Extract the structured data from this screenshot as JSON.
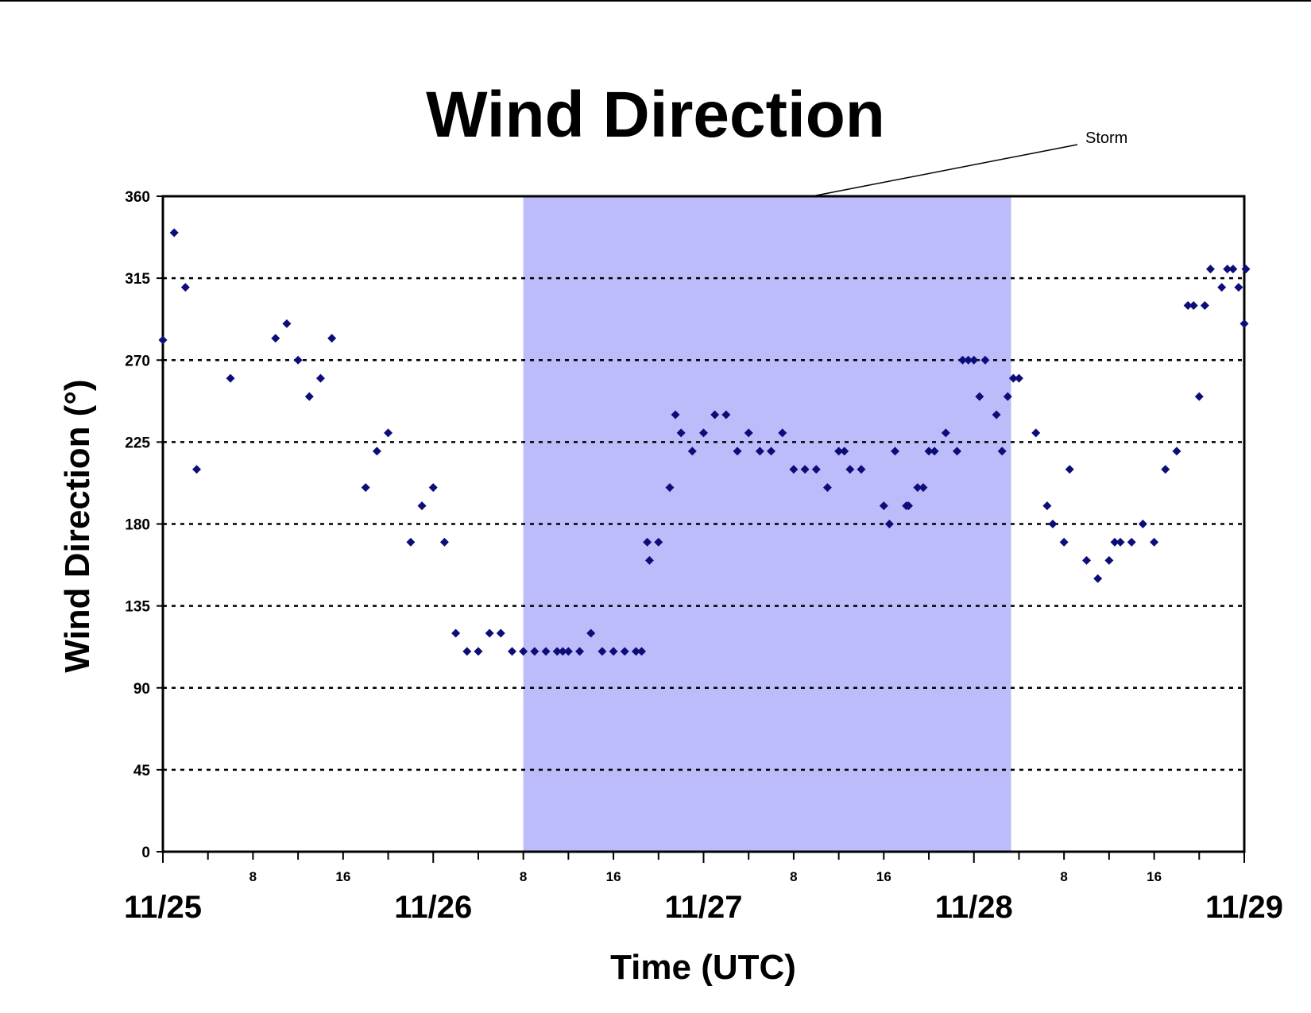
{
  "chart_data": {
    "type": "scatter",
    "title": "Wind Direction",
    "xlabel": "Time (UTC)",
    "ylabel": "Wind Direction (°)",
    "x_unit": "hours since 11/25 00 UTC",
    "xlim": [
      0,
      96
    ],
    "ylim": [
      0,
      360
    ],
    "y_ticks": [
      0,
      45,
      90,
      135,
      180,
      225,
      270,
      315,
      360
    ],
    "y_grid": true,
    "x_major_ticks": [
      {
        "x": 0,
        "label": "11/25"
      },
      {
        "x": 24,
        "label": "11/26"
      },
      {
        "x": 48,
        "label": "11/27"
      },
      {
        "x": 72,
        "label": "11/28"
      },
      {
        "x": 96,
        "label": "11/29"
      }
    ],
    "x_minor_ticks": [
      {
        "x": 8,
        "label": "8"
      },
      {
        "x": 16,
        "label": "16"
      },
      {
        "x": 32,
        "label": "8"
      },
      {
        "x": 40,
        "label": "16"
      },
      {
        "x": 56,
        "label": "8"
      },
      {
        "x": 64,
        "label": "16"
      },
      {
        "x": 80,
        "label": "8"
      },
      {
        "x": 88,
        "label": "16"
      }
    ],
    "shaded_region": {
      "x_start": 32,
      "x_end": 75.3,
      "label": "Storm",
      "color": "#bcbcfa"
    },
    "marker_color": "#0d0d7a",
    "series": [
      {
        "name": "",
        "points": [
          [
            0,
            281
          ],
          [
            1,
            340
          ],
          [
            2,
            310
          ],
          [
            3,
            210
          ],
          [
            6,
            260
          ],
          [
            10,
            282
          ],
          [
            11,
            290
          ],
          [
            12,
            270
          ],
          [
            13,
            250
          ],
          [
            14,
            260
          ],
          [
            15,
            282
          ],
          [
            18,
            200
          ],
          [
            19,
            220
          ],
          [
            20,
            230
          ],
          [
            22,
            170
          ],
          [
            23,
            190
          ],
          [
            24,
            200
          ],
          [
            25,
            170
          ],
          [
            26,
            120
          ],
          [
            27,
            110
          ],
          [
            28,
            110
          ],
          [
            29,
            120
          ],
          [
            30,
            120
          ],
          [
            31,
            110
          ],
          [
            32,
            110
          ],
          [
            33,
            110
          ],
          [
            34,
            110
          ],
          [
            35,
            110
          ],
          [
            35.5,
            110
          ],
          [
            36,
            110
          ],
          [
            37,
            110
          ],
          [
            38,
            120
          ],
          [
            39,
            110
          ],
          [
            40,
            110
          ],
          [
            41,
            110
          ],
          [
            42,
            110
          ],
          [
            42.5,
            110
          ],
          [
            43,
            170
          ],
          [
            43.2,
            160
          ],
          [
            44,
            170
          ],
          [
            45,
            200
          ],
          [
            45.5,
            240
          ],
          [
            46,
            230
          ],
          [
            47,
            220
          ],
          [
            48,
            230
          ],
          [
            49,
            240
          ],
          [
            50,
            240
          ],
          [
            51,
            220
          ],
          [
            52,
            230
          ],
          [
            53,
            220
          ],
          [
            54,
            220
          ],
          [
            55,
            230
          ],
          [
            56,
            210
          ],
          [
            57,
            210
          ],
          [
            58,
            210
          ],
          [
            59,
            200
          ],
          [
            60,
            220
          ],
          [
            60.5,
            220
          ],
          [
            61,
            210
          ],
          [
            62,
            210
          ],
          [
            64,
            190
          ],
          [
            64.5,
            180
          ],
          [
            65,
            220
          ],
          [
            66,
            190
          ],
          [
            66.2,
            190
          ],
          [
            67,
            200
          ],
          [
            67.5,
            200
          ],
          [
            68,
            220
          ],
          [
            68.5,
            220
          ],
          [
            69.5,
            230
          ],
          [
            70.5,
            220
          ],
          [
            71,
            270
          ],
          [
            71.5,
            270
          ],
          [
            72,
            270
          ],
          [
            72.5,
            250
          ],
          [
            73,
            270
          ],
          [
            74,
            240
          ],
          [
            74.5,
            220
          ],
          [
            75,
            250
          ],
          [
            75.5,
            260
          ],
          [
            76,
            260
          ],
          [
            77.5,
            230
          ],
          [
            78.5,
            190
          ],
          [
            79,
            180
          ],
          [
            80,
            170
          ],
          [
            80.5,
            210
          ],
          [
            82,
            160
          ],
          [
            83,
            150
          ],
          [
            84,
            160
          ],
          [
            84.5,
            170
          ],
          [
            85,
            170
          ],
          [
            86,
            170
          ],
          [
            87,
            180
          ],
          [
            88,
            170
          ],
          [
            89,
            210
          ],
          [
            90,
            220
          ],
          [
            91,
            300
          ],
          [
            91.5,
            300
          ],
          [
            92,
            250
          ],
          [
            92.5,
            300
          ],
          [
            93,
            320
          ],
          [
            94,
            310
          ],
          [
            94.5,
            320
          ],
          [
            95,
            320
          ],
          [
            95.5,
            310
          ],
          [
            96,
            290
          ],
          [
            97,
            320
          ]
        ]
      }
    ]
  }
}
